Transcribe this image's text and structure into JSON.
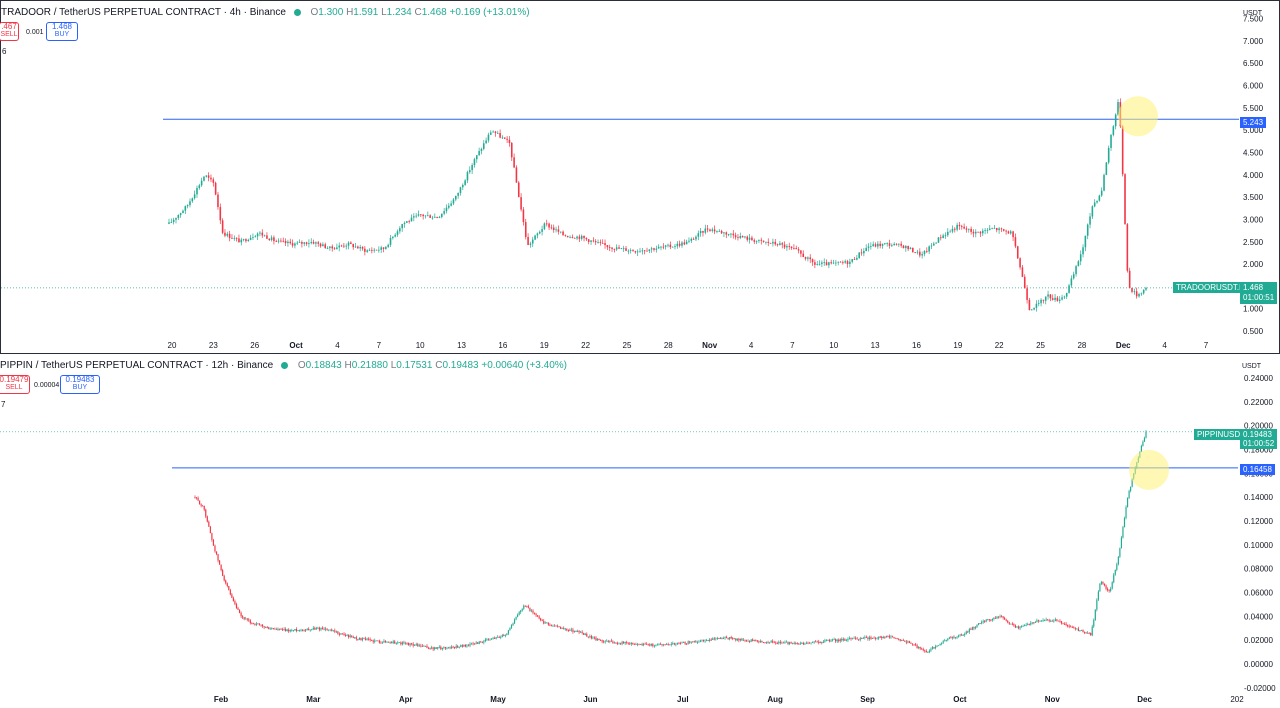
{
  "colors": {
    "up": "#22ab94",
    "down": "#f23645",
    "hline": "#2962ff",
    "grid": "#e0e3eb",
    "highlight": "#fff176"
  },
  "top": {
    "title": "TRADOOR / TetherUS PERPETUAL CONTRACT · 4h · Binance",
    "ohlc": {
      "o_label": "O",
      "o": "1.300",
      "h_label": "H",
      "h": "1.591",
      "l_label": "L",
      "l": "1.234",
      "c_label": "C",
      "c": "1.468",
      "chg": "+0.169 (+13.01%)"
    },
    "sell_price": ".467",
    "sell_label": "SELL",
    "spread": "0.001",
    "buy_price": "1.468",
    "buy_label": "BUY",
    "indicator_count": "6",
    "currency": "USDT",
    "hline_value": "5.243",
    "symbol_tag": "TRADOORUSDT.P",
    "last_price": "1.468",
    "countdown": "01:00:51"
  },
  "bottom": {
    "title": "PIPPIN / TetherUS PERPETUAL CONTRACT · 12h · Binance",
    "ohlc": {
      "o_label": "O",
      "o": "0.18843",
      "h_label": "H",
      "h": "0.21880",
      "l_label": "L",
      "l": "0.17531",
      "c_label": "C",
      "c": "0.19483",
      "chg": "+0.00640 (+3.40%)"
    },
    "sell_price": "0.19479",
    "sell_label": "SELL",
    "spread": "0.00004",
    "buy_price": "0.19483",
    "buy_label": "BUY",
    "indicator_count": "7",
    "currency": "USDT",
    "hline_value": "0.16458",
    "symbol_tag": "PIPPINUSDT.P",
    "last_price": "0.19483",
    "countdown": "01:00:52"
  },
  "chart_data": [
    {
      "type": "candlestick",
      "title": "TRADOOR / TetherUS PERPETUAL CONTRACT · 4h · Binance",
      "yticks": [
        "7.500",
        "7.000",
        "6.500",
        "6.000",
        "5.500",
        "5.000",
        "4.500",
        "4.000",
        "3.500",
        "3.000",
        "2.500",
        "2.000",
        "1.500",
        "1.000",
        "0.500"
      ],
      "ylim": [
        0.3,
        7.6
      ],
      "xticks": [
        "20",
        "23",
        "26",
        "Oct",
        "4",
        "7",
        "10",
        "13",
        "16",
        "19",
        "22",
        "25",
        "28",
        "Nov",
        "4",
        "7",
        "10",
        "13",
        "16",
        "19",
        "22",
        "25",
        "28",
        "Dec",
        "4",
        "7"
      ],
      "horizontal_line": 5.243,
      "last_price": 1.468,
      "close_path": [
        [
          0,
          2.9
        ],
        [
          2,
          3.3
        ],
        [
          4,
          4.0
        ],
        [
          5,
          3.8
        ],
        [
          6,
          2.7
        ],
        [
          8,
          2.5
        ],
        [
          10,
          2.7
        ],
        [
          12,
          2.5
        ],
        [
          14,
          2.45
        ],
        [
          16,
          2.5
        ],
        [
          18,
          2.35
        ],
        [
          20,
          2.45
        ],
        [
          22,
          2.3
        ],
        [
          24,
          2.35
        ],
        [
          26,
          2.9
        ],
        [
          28,
          3.1
        ],
        [
          30,
          3.05
        ],
        [
          32,
          3.5
        ],
        [
          34,
          4.3
        ],
        [
          36,
          5.0
        ],
        [
          38,
          4.7
        ],
        [
          40,
          2.4
        ],
        [
          42,
          2.9
        ],
        [
          44,
          2.65
        ],
        [
          46,
          2.6
        ],
        [
          48,
          2.45
        ],
        [
          50,
          2.35
        ],
        [
          52,
          2.3
        ],
        [
          54,
          2.35
        ],
        [
          56,
          2.4
        ],
        [
          58,
          2.5
        ],
        [
          60,
          2.8
        ],
        [
          62,
          2.7
        ],
        [
          64,
          2.6
        ],
        [
          66,
          2.5
        ],
        [
          68,
          2.45
        ],
        [
          70,
          2.3
        ],
        [
          72,
          2.0
        ],
        [
          74,
          2.0
        ],
        [
          76,
          2.05
        ],
        [
          78,
          2.4
        ],
        [
          80,
          2.45
        ],
        [
          82,
          2.4
        ],
        [
          84,
          2.2
        ],
        [
          86,
          2.6
        ],
        [
          88,
          2.85
        ],
        [
          90,
          2.7
        ],
        [
          92,
          2.8
        ],
        [
          94,
          2.7
        ],
        [
          95,
          1.9
        ],
        [
          96,
          1.0
        ],
        [
          97,
          1.1
        ],
        [
          98,
          1.3
        ],
        [
          99,
          1.2
        ],
        [
          100,
          1.3
        ],
        [
          101,
          1.8
        ],
        [
          102,
          2.4
        ],
        [
          103,
          3.3
        ],
        [
          104,
          3.6
        ],
        [
          105,
          4.8
        ],
        [
          106,
          5.7
        ],
        [
          107,
          1.5
        ],
        [
          108,
          1.3
        ],
        [
          109,
          1.468
        ]
      ]
    },
    {
      "type": "candlestick",
      "title": "PIPPIN / TetherUS PERPETUAL CONTRACT · 12h · Binance",
      "yticks": [
        "0.24000",
        "0.22000",
        "0.20000",
        "0.18000",
        "0.16000",
        "0.14000",
        "0.12000",
        "0.10000",
        "0.08000",
        "0.06000",
        "0.04000",
        "0.02000",
        "0.00000",
        "-0.02000"
      ],
      "ylim": [
        -0.021,
        0.245
      ],
      "xticks": [
        "Feb",
        "Mar",
        "Apr",
        "May",
        "Jun",
        "Jul",
        "Aug",
        "Sep",
        "Oct",
        "Nov",
        "Dec",
        "202"
      ],
      "horizontal_line": 0.16458,
      "last_price": 0.19483,
      "close_path": [
        [
          0,
          0.14
        ],
        [
          1,
          0.13
        ],
        [
          2,
          0.1
        ],
        [
          3,
          0.075
        ],
        [
          4,
          0.055
        ],
        [
          5,
          0.04
        ],
        [
          6,
          0.035
        ],
        [
          8,
          0.03
        ],
        [
          10,
          0.028
        ],
        [
          12,
          0.029
        ],
        [
          14,
          0.03
        ],
        [
          16,
          0.025
        ],
        [
          18,
          0.021
        ],
        [
          20,
          0.019
        ],
        [
          22,
          0.018
        ],
        [
          24,
          0.016
        ],
        [
          26,
          0.013
        ],
        [
          28,
          0.014
        ],
        [
          30,
          0.016
        ],
        [
          32,
          0.02
        ],
        [
          34,
          0.025
        ],
        [
          36,
          0.05
        ],
        [
          38,
          0.035
        ],
        [
          40,
          0.03
        ],
        [
          42,
          0.027
        ],
        [
          44,
          0.02
        ],
        [
          46,
          0.018
        ],
        [
          48,
          0.017
        ],
        [
          50,
          0.016
        ],
        [
          52,
          0.017
        ],
        [
          54,
          0.018
        ],
        [
          56,
          0.02
        ],
        [
          58,
          0.022
        ],
        [
          60,
          0.02
        ],
        [
          62,
          0.019
        ],
        [
          64,
          0.018
        ],
        [
          66,
          0.017
        ],
        [
          68,
          0.018
        ],
        [
          70,
          0.02
        ],
        [
          72,
          0.021
        ],
        [
          74,
          0.022
        ],
        [
          76,
          0.023
        ],
        [
          78,
          0.018
        ],
        [
          80,
          0.01
        ],
        [
          82,
          0.02
        ],
        [
          84,
          0.025
        ],
        [
          86,
          0.035
        ],
        [
          88,
          0.04
        ],
        [
          90,
          0.03
        ],
        [
          92,
          0.036
        ],
        [
          94,
          0.037
        ],
        [
          96,
          0.03
        ],
        [
          98,
          0.025
        ],
        [
          99,
          0.07
        ],
        [
          100,
          0.06
        ],
        [
          101,
          0.09
        ],
        [
          102,
          0.14
        ],
        [
          103,
          0.17
        ],
        [
          104,
          0.19483
        ]
      ]
    }
  ]
}
